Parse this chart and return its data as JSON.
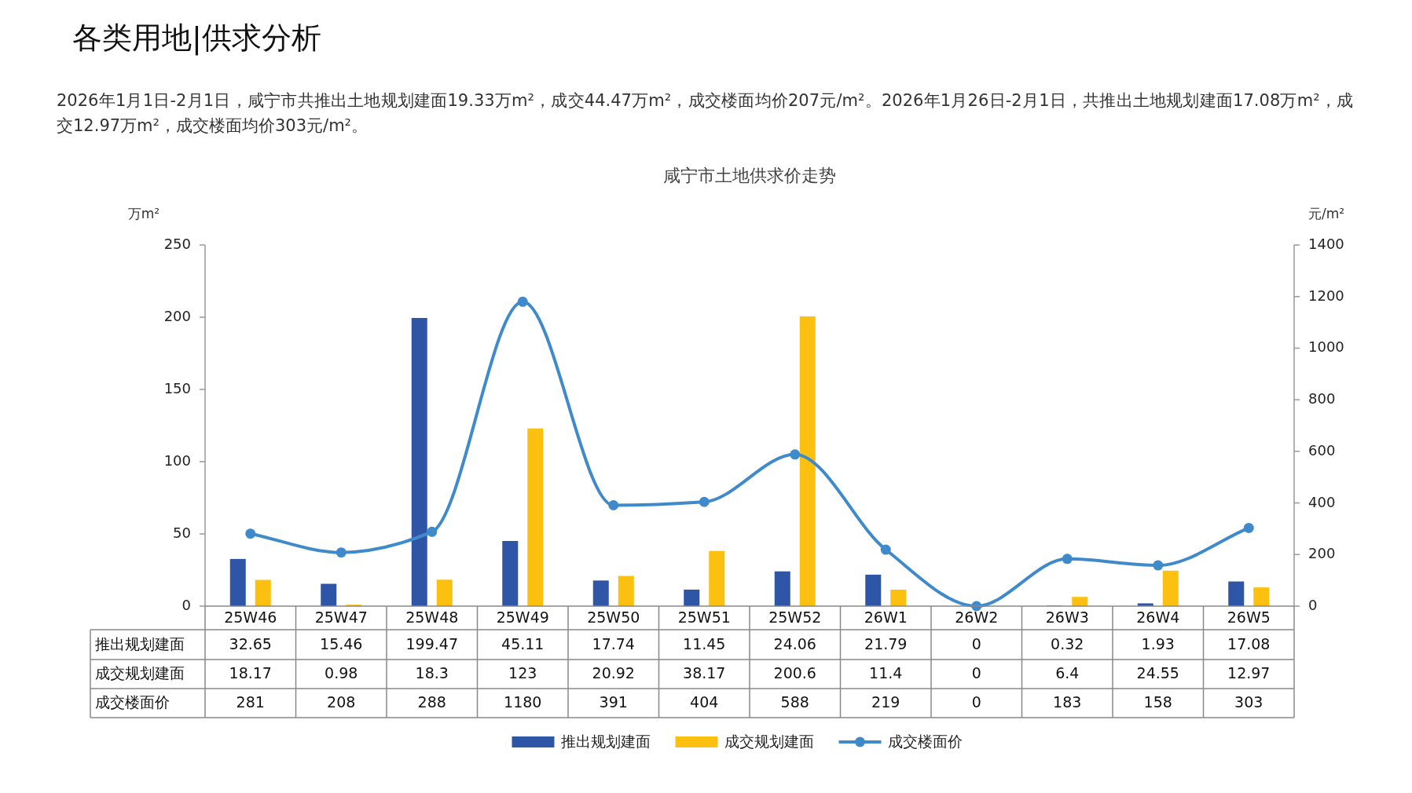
{
  "chart_data": {
    "type": "bar",
    "title": "咸宁市土地供求价走势",
    "annotations": [
      "各类用地|供求分析",
      "2026年1月1日-2月1日，咸宁市共推出土地规划建面19.33万m²，成交44.47万m²，成交楼面均价207元/m²。2026年1月26日-2月1日，共推出土地规划建面17.08万m²，成交12.97万m²，成交楼面均价303元/m²。"
    ],
    "ylabel": "万m²",
    "y2label": "元/m²",
    "categories": [
      "25W46",
      "25W47",
      "25W48",
      "25W49",
      "25W50",
      "25W51",
      "25W52",
      "26W1",
      "26W2",
      "26W3",
      "26W4",
      "26W5"
    ],
    "series": [
      {
        "name": "推出规划建面",
        "color": "#2f56a6",
        "values": [
          32.65,
          15.46,
          199.47,
          45.11,
          17.74,
          11.45,
          24.06,
          21.79,
          0,
          0.32,
          1.93,
          17.08
        ]
      },
      {
        "name": "成交规划建面",
        "color": "#fbc010",
        "values": [
          18.17,
          0.98,
          18.3,
          123,
          20.92,
          38.17,
          200.6,
          11.4,
          0,
          6.4,
          24.55,
          12.97
        ]
      },
      {
        "name": "成交楼面价",
        "type": "line",
        "axis": "y2",
        "color": "#3f8acb",
        "marker": "circle",
        "values": [
          281,
          208,
          288,
          1180,
          391,
          404,
          588,
          219,
          0,
          183,
          158,
          303
        ]
      }
    ],
    "ylim": [
      0,
      250
    ],
    "yticks": [
      0,
      50,
      100,
      150,
      200,
      250
    ],
    "y2lim": [
      0,
      1400
    ],
    "y2ticks": [
      0,
      200,
      400,
      600,
      800,
      1000,
      1200,
      1400
    ],
    "data_labels": true,
    "legend": "bottom",
    "grid": false
  }
}
